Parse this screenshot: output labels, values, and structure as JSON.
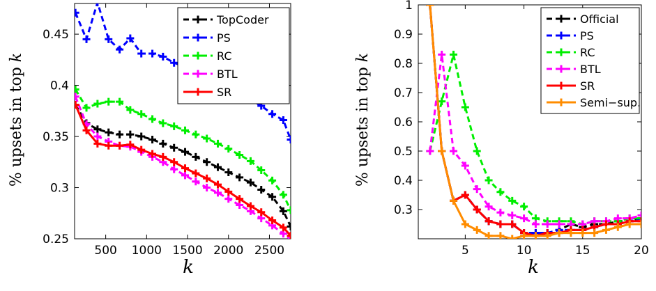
{
  "chart_data": [
    {
      "type": "line",
      "xlabel": "k",
      "ylabel": "% upsets in top k",
      "xlim": [
        120,
        2760
      ],
      "ylim": [
        0.25,
        0.48
      ],
      "xticks": [
        500,
        1000,
        1500,
        2000,
        2500
      ],
      "yticks": [
        0.25,
        0.3,
        0.35,
        0.4,
        0.45
      ],
      "ytick_labels": [
        "0.25",
        "0.3",
        "0.35",
        "0.4",
        "0.45"
      ],
      "grid": false,
      "legend_position": "top-right",
      "x": [
        130,
        265,
        400,
        535,
        670,
        800,
        935,
        1070,
        1200,
        1335,
        1470,
        1600,
        1735,
        1870,
        2000,
        2135,
        2270,
        2400,
        2535,
        2670,
        2760
      ],
      "series": [
        {
          "name": "TopCoder",
          "color": "#000000",
          "dashed": true,
          "values": [
            0.381,
            0.363,
            0.357,
            0.354,
            0.352,
            0.352,
            0.35,
            0.347,
            0.343,
            0.339,
            0.335,
            0.33,
            0.325,
            0.32,
            0.315,
            0.31,
            0.305,
            0.298,
            0.291,
            0.277,
            0.262
          ]
        },
        {
          "name": "PS",
          "color": "#0000ff",
          "dashed": true,
          "values": [
            0.471,
            0.445,
            0.481,
            0.445,
            0.435,
            0.446,
            0.431,
            0.431,
            0.428,
            0.422,
            0.418,
            0.414,
            0.41,
            0.405,
            0.398,
            0.392,
            0.386,
            0.38,
            0.372,
            0.366,
            0.347
          ]
        },
        {
          "name": "RC",
          "color": "#00ee00",
          "dashed": true,
          "values": [
            0.396,
            0.378,
            0.382,
            0.384,
            0.384,
            0.376,
            0.372,
            0.367,
            0.363,
            0.36,
            0.356,
            0.352,
            0.348,
            0.343,
            0.338,
            0.332,
            0.326,
            0.317,
            0.307,
            0.293,
            0.278
          ]
        },
        {
          "name": "BTL",
          "color": "#ff00ff",
          "dashed": true,
          "values": [
            0.389,
            0.362,
            0.35,
            0.345,
            0.341,
            0.34,
            0.335,
            0.33,
            0.325,
            0.318,
            0.312,
            0.306,
            0.3,
            0.295,
            0.289,
            0.283,
            0.277,
            0.27,
            0.263,
            0.255,
            0.249
          ]
        },
        {
          "name": "SR",
          "color": "#ff0000",
          "dashed": false,
          "values": [
            0.381,
            0.356,
            0.343,
            0.341,
            0.341,
            0.342,
            0.337,
            0.333,
            0.33,
            0.325,
            0.319,
            0.314,
            0.309,
            0.303,
            0.296,
            0.289,
            0.282,
            0.276,
            0.268,
            0.261,
            0.253
          ]
        }
      ]
    },
    {
      "type": "line",
      "xlabel": "k",
      "ylabel": "% upsets in top k",
      "xlim": [
        1,
        20
      ],
      "ylim": [
        0.2,
        1.0
      ],
      "xticks": [
        5,
        10,
        15,
        20
      ],
      "yticks": [
        0.3,
        0.4,
        0.5,
        0.6,
        0.7,
        0.8,
        0.9,
        1.0
      ],
      "ytick_labels": [
        "0.3",
        "0.4",
        "0.5",
        "0.6",
        "0.7",
        "0.8",
        "0.9",
        "1"
      ],
      "grid": false,
      "legend_position": "top-right",
      "x": [
        2,
        3,
        4,
        5,
        6,
        7,
        8,
        9,
        10,
        11,
        12,
        13,
        14,
        15,
        16,
        17,
        18,
        19,
        20
      ],
      "series": [
        {
          "name": "Official",
          "color": "#000000",
          "dashed": true,
          "values": [
            1.0,
            0.5,
            0.33,
            0.35,
            0.3,
            0.26,
            0.25,
            0.25,
            0.22,
            0.22,
            0.22,
            0.23,
            0.25,
            0.24,
            0.25,
            0.25,
            0.26,
            0.26,
            0.27
          ]
        },
        {
          "name": "PS",
          "color": "#0000ff",
          "dashed": true,
          "values": [
            1.0,
            0.5,
            0.33,
            0.35,
            0.3,
            0.26,
            0.25,
            0.25,
            0.22,
            0.22,
            0.22,
            0.23,
            0.23,
            0.23,
            0.24,
            0.25,
            0.25,
            0.26,
            0.27
          ]
        },
        {
          "name": "RC",
          "color": "#00ee00",
          "dashed": true,
          "values": [
            0.5,
            0.67,
            0.83,
            0.65,
            0.5,
            0.4,
            0.36,
            0.33,
            0.31,
            0.27,
            0.26,
            0.26,
            0.26,
            0.25,
            0.26,
            0.26,
            0.26,
            0.27,
            0.27
          ]
        },
        {
          "name": "BTL",
          "color": "#ff00ff",
          "dashed": true,
          "values": [
            0.5,
            0.83,
            0.5,
            0.45,
            0.37,
            0.31,
            0.29,
            0.28,
            0.27,
            0.25,
            0.25,
            0.25,
            0.25,
            0.25,
            0.26,
            0.26,
            0.27,
            0.27,
            0.28
          ]
        },
        {
          "name": "SR",
          "color": "#ff0000",
          "dashed": false,
          "values": [
            1.0,
            0.5,
            0.33,
            0.35,
            0.3,
            0.26,
            0.25,
            0.25,
            0.22,
            0.21,
            0.22,
            0.22,
            0.23,
            0.23,
            0.24,
            0.25,
            0.25,
            0.26,
            0.26
          ]
        },
        {
          "name": "Semi−sup.",
          "color": "#ff8c00",
          "dashed": false,
          "values": [
            1.0,
            0.5,
            0.33,
            0.25,
            0.23,
            0.21,
            0.21,
            0.2,
            0.21,
            0.21,
            0.21,
            0.22,
            0.22,
            0.22,
            0.22,
            0.23,
            0.24,
            0.25,
            0.25
          ]
        }
      ]
    }
  ]
}
